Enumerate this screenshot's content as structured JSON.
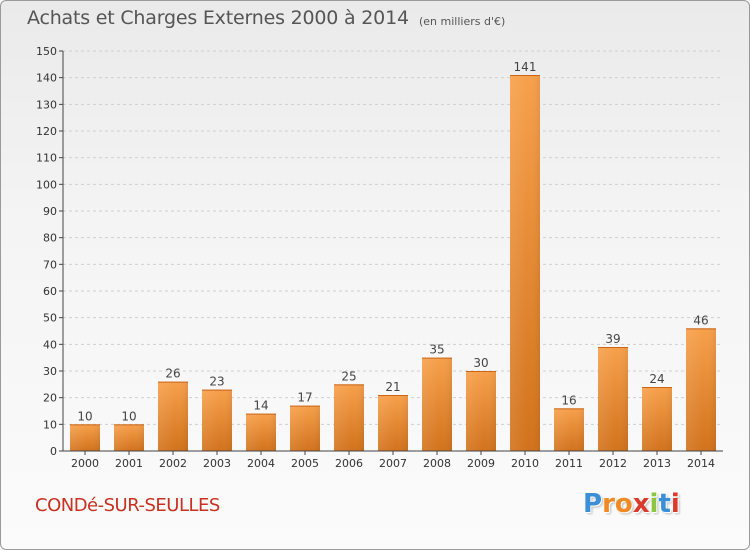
{
  "header": {
    "title": "Achats et Charges Externes 2000 à 2014",
    "unit": "(en milliers d'€)"
  },
  "footer": {
    "commune": "CONDé-SUR-SEULLES",
    "logo_letters": [
      "P",
      "r",
      "o",
      "x",
      "i",
      "t",
      "i"
    ],
    "logo_colors": [
      "#3a8fd6",
      "#f08a24",
      "#f08a24",
      "#d93a2b",
      "#8cc63f",
      "#3a8fd6",
      "#d93a2b"
    ]
  },
  "chart_data": {
    "type": "bar",
    "categories": [
      "2000",
      "2001",
      "2002",
      "2003",
      "2004",
      "2005",
      "2006",
      "2007",
      "2008",
      "2009",
      "2010",
      "2011",
      "2012",
      "2013",
      "2014"
    ],
    "values": [
      10,
      10,
      26,
      23,
      14,
      17,
      25,
      21,
      35,
      30,
      141,
      16,
      39,
      24,
      46
    ],
    "ylim": [
      0,
      150
    ],
    "yticks": [
      0,
      10,
      20,
      30,
      40,
      50,
      60,
      70,
      80,
      90,
      100,
      110,
      120,
      130,
      140,
      150
    ],
    "grid": true,
    "bar_color": "#f0902e",
    "xlabel": "",
    "ylabel": ""
  }
}
